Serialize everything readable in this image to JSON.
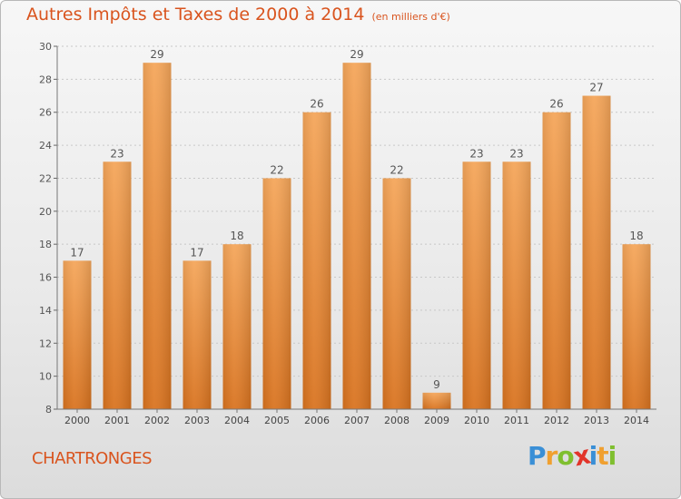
{
  "header": {
    "title": "Autres Impôts et Taxes de 2000 à 2014",
    "subtitle": "(en milliers d'€)"
  },
  "footer": {
    "commune": "CHARTRONGES",
    "logo_letters": [
      "P",
      "r",
      "o",
      "x",
      "i",
      "t",
      "i"
    ],
    "logo_colors": [
      "#3a8fd6",
      "#f0a030",
      "#7fbf2f",
      "#e2342a",
      "#3a8fd6",
      "#f0a030",
      "#7fbf2f"
    ]
  },
  "chart_data": {
    "type": "bar",
    "categories": [
      "2000",
      "2001",
      "2002",
      "2003",
      "2004",
      "2005",
      "2006",
      "2007",
      "2008",
      "2009",
      "2010",
      "2011",
      "2012",
      "2013",
      "2014"
    ],
    "values": [
      17,
      23,
      29,
      17,
      18,
      22,
      26,
      29,
      22,
      9,
      23,
      23,
      26,
      27,
      18
    ],
    "ylim": [
      8,
      30
    ],
    "yticks": [
      8,
      10,
      12,
      14,
      16,
      18,
      20,
      22,
      24,
      26,
      28,
      30
    ],
    "grid": true,
    "bar_color_top": "#f5a65a",
    "bar_color_bottom": "#d9731f"
  }
}
